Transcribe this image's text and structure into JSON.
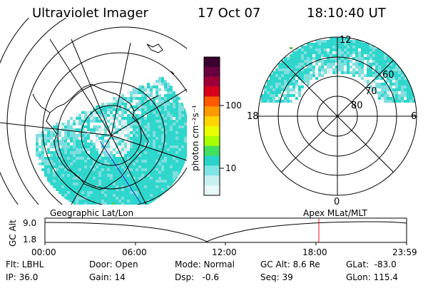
{
  "header": {
    "title": "Ultraviolet Imager",
    "date": "17 Oct 07",
    "time": "18:10:40 UT"
  },
  "colors": {
    "aurora_low": "#d8eeee",
    "aurora_mid": "#7fdede",
    "aurora_high": "#2fd6cc",
    "marker_line": "#e0101a",
    "track_line": "#1030c0",
    "station_dot": "#55c855"
  },
  "colorbar": {
    "unit_label": "photon cm⁻²s⁻¹",
    "tick_labels": [
      "100",
      "10"
    ],
    "colors": [
      "#3a0030",
      "#6a0040",
      "#a0003a",
      "#d8001a",
      "#ff5a00",
      "#ff9a00",
      "#ffd400",
      "#e8ff00",
      "#a8ff00",
      "#40e060",
      "#2ad4c8",
      "#80e4e4",
      "#c8f0f0",
      "#e8f8f8"
    ]
  },
  "left_panel": {
    "label": "Geographic Lat/Lon"
  },
  "right_panel": {
    "label": "Apex MLat/MLT",
    "mlt_labels": {
      "top": "12",
      "left": "18",
      "right": "6",
      "bottom": "0"
    },
    "lat_labels": [
      "60",
      "70",
      "80"
    ]
  },
  "altitude_strip": {
    "axis_label": "GC Alt",
    "y_max_label": "9.0",
    "y_min_label": "1.8",
    "time_ticks": [
      "00:00",
      "06:00",
      "12:00",
      "18:00",
      "23:59"
    ],
    "current_time_fraction": 0.758
  },
  "status": {
    "flt": "Flt: LBHL",
    "ip": "IP: 36.0",
    "door": "Door: Open",
    "gain": "Gain: 14",
    "mode": "Mode: Normal",
    "dsp": "Dsp:   -0.6",
    "gc_alt": "GC Alt: 8.6 Re",
    "seq": "Seq: 39",
    "glat": "GLat:  -83.0",
    "glon": "GLon: 115.4"
  }
}
